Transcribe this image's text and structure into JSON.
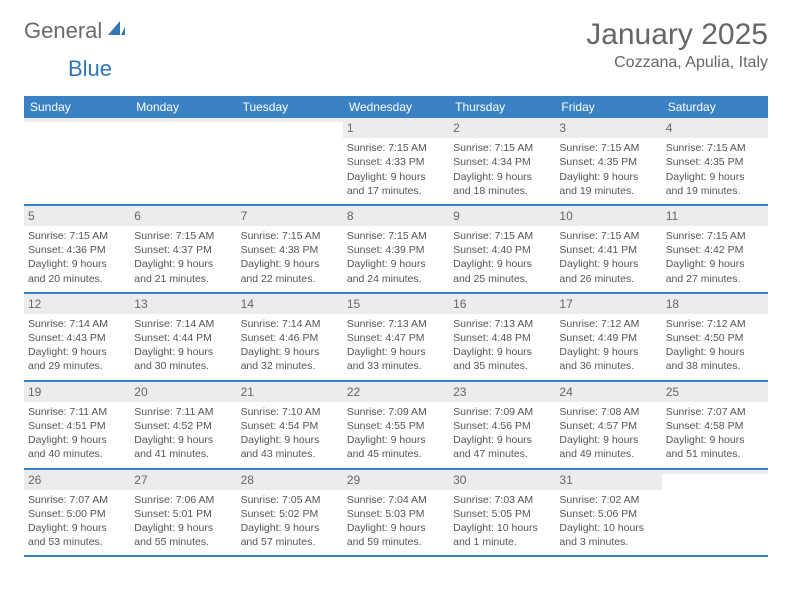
{
  "brand": {
    "part1": "General",
    "part2": "Blue"
  },
  "title": "January 2025",
  "location": "Cozzana, Apulia, Italy",
  "colors": {
    "accent": "#3b82c4",
    "header_bg": "#3b82c4",
    "daynum_bg": "#ececec",
    "text": "#555555",
    "title_text": "#666666"
  },
  "weekdays": [
    "Sunday",
    "Monday",
    "Tuesday",
    "Wednesday",
    "Thursday",
    "Friday",
    "Saturday"
  ],
  "weeks": [
    [
      {
        "n": "",
        "sunrise": "",
        "sunset": "",
        "daylight": ""
      },
      {
        "n": "",
        "sunrise": "",
        "sunset": "",
        "daylight": ""
      },
      {
        "n": "",
        "sunrise": "",
        "sunset": "",
        "daylight": ""
      },
      {
        "n": "1",
        "sunrise": "Sunrise: 7:15 AM",
        "sunset": "Sunset: 4:33 PM",
        "daylight": "Daylight: 9 hours and 17 minutes."
      },
      {
        "n": "2",
        "sunrise": "Sunrise: 7:15 AM",
        "sunset": "Sunset: 4:34 PM",
        "daylight": "Daylight: 9 hours and 18 minutes."
      },
      {
        "n": "3",
        "sunrise": "Sunrise: 7:15 AM",
        "sunset": "Sunset: 4:35 PM",
        "daylight": "Daylight: 9 hours and 19 minutes."
      },
      {
        "n": "4",
        "sunrise": "Sunrise: 7:15 AM",
        "sunset": "Sunset: 4:35 PM",
        "daylight": "Daylight: 9 hours and 19 minutes."
      }
    ],
    [
      {
        "n": "5",
        "sunrise": "Sunrise: 7:15 AM",
        "sunset": "Sunset: 4:36 PM",
        "daylight": "Daylight: 9 hours and 20 minutes."
      },
      {
        "n": "6",
        "sunrise": "Sunrise: 7:15 AM",
        "sunset": "Sunset: 4:37 PM",
        "daylight": "Daylight: 9 hours and 21 minutes."
      },
      {
        "n": "7",
        "sunrise": "Sunrise: 7:15 AM",
        "sunset": "Sunset: 4:38 PM",
        "daylight": "Daylight: 9 hours and 22 minutes."
      },
      {
        "n": "8",
        "sunrise": "Sunrise: 7:15 AM",
        "sunset": "Sunset: 4:39 PM",
        "daylight": "Daylight: 9 hours and 24 minutes."
      },
      {
        "n": "9",
        "sunrise": "Sunrise: 7:15 AM",
        "sunset": "Sunset: 4:40 PM",
        "daylight": "Daylight: 9 hours and 25 minutes."
      },
      {
        "n": "10",
        "sunrise": "Sunrise: 7:15 AM",
        "sunset": "Sunset: 4:41 PM",
        "daylight": "Daylight: 9 hours and 26 minutes."
      },
      {
        "n": "11",
        "sunrise": "Sunrise: 7:15 AM",
        "sunset": "Sunset: 4:42 PM",
        "daylight": "Daylight: 9 hours and 27 minutes."
      }
    ],
    [
      {
        "n": "12",
        "sunrise": "Sunrise: 7:14 AM",
        "sunset": "Sunset: 4:43 PM",
        "daylight": "Daylight: 9 hours and 29 minutes."
      },
      {
        "n": "13",
        "sunrise": "Sunrise: 7:14 AM",
        "sunset": "Sunset: 4:44 PM",
        "daylight": "Daylight: 9 hours and 30 minutes."
      },
      {
        "n": "14",
        "sunrise": "Sunrise: 7:14 AM",
        "sunset": "Sunset: 4:46 PM",
        "daylight": "Daylight: 9 hours and 32 minutes."
      },
      {
        "n": "15",
        "sunrise": "Sunrise: 7:13 AM",
        "sunset": "Sunset: 4:47 PM",
        "daylight": "Daylight: 9 hours and 33 minutes."
      },
      {
        "n": "16",
        "sunrise": "Sunrise: 7:13 AM",
        "sunset": "Sunset: 4:48 PM",
        "daylight": "Daylight: 9 hours and 35 minutes."
      },
      {
        "n": "17",
        "sunrise": "Sunrise: 7:12 AM",
        "sunset": "Sunset: 4:49 PM",
        "daylight": "Daylight: 9 hours and 36 minutes."
      },
      {
        "n": "18",
        "sunrise": "Sunrise: 7:12 AM",
        "sunset": "Sunset: 4:50 PM",
        "daylight": "Daylight: 9 hours and 38 minutes."
      }
    ],
    [
      {
        "n": "19",
        "sunrise": "Sunrise: 7:11 AM",
        "sunset": "Sunset: 4:51 PM",
        "daylight": "Daylight: 9 hours and 40 minutes."
      },
      {
        "n": "20",
        "sunrise": "Sunrise: 7:11 AM",
        "sunset": "Sunset: 4:52 PM",
        "daylight": "Daylight: 9 hours and 41 minutes."
      },
      {
        "n": "21",
        "sunrise": "Sunrise: 7:10 AM",
        "sunset": "Sunset: 4:54 PM",
        "daylight": "Daylight: 9 hours and 43 minutes."
      },
      {
        "n": "22",
        "sunrise": "Sunrise: 7:09 AM",
        "sunset": "Sunset: 4:55 PM",
        "daylight": "Daylight: 9 hours and 45 minutes."
      },
      {
        "n": "23",
        "sunrise": "Sunrise: 7:09 AM",
        "sunset": "Sunset: 4:56 PM",
        "daylight": "Daylight: 9 hours and 47 minutes."
      },
      {
        "n": "24",
        "sunrise": "Sunrise: 7:08 AM",
        "sunset": "Sunset: 4:57 PM",
        "daylight": "Daylight: 9 hours and 49 minutes."
      },
      {
        "n": "25",
        "sunrise": "Sunrise: 7:07 AM",
        "sunset": "Sunset: 4:58 PM",
        "daylight": "Daylight: 9 hours and 51 minutes."
      }
    ],
    [
      {
        "n": "26",
        "sunrise": "Sunrise: 7:07 AM",
        "sunset": "Sunset: 5:00 PM",
        "daylight": "Daylight: 9 hours and 53 minutes."
      },
      {
        "n": "27",
        "sunrise": "Sunrise: 7:06 AM",
        "sunset": "Sunset: 5:01 PM",
        "daylight": "Daylight: 9 hours and 55 minutes."
      },
      {
        "n": "28",
        "sunrise": "Sunrise: 7:05 AM",
        "sunset": "Sunset: 5:02 PM",
        "daylight": "Daylight: 9 hours and 57 minutes."
      },
      {
        "n": "29",
        "sunrise": "Sunrise: 7:04 AM",
        "sunset": "Sunset: 5:03 PM",
        "daylight": "Daylight: 9 hours and 59 minutes."
      },
      {
        "n": "30",
        "sunrise": "Sunrise: 7:03 AM",
        "sunset": "Sunset: 5:05 PM",
        "daylight": "Daylight: 10 hours and 1 minute."
      },
      {
        "n": "31",
        "sunrise": "Sunrise: 7:02 AM",
        "sunset": "Sunset: 5:06 PM",
        "daylight": "Daylight: 10 hours and 3 minutes."
      },
      {
        "n": "",
        "sunrise": "",
        "sunset": "",
        "daylight": ""
      }
    ]
  ]
}
